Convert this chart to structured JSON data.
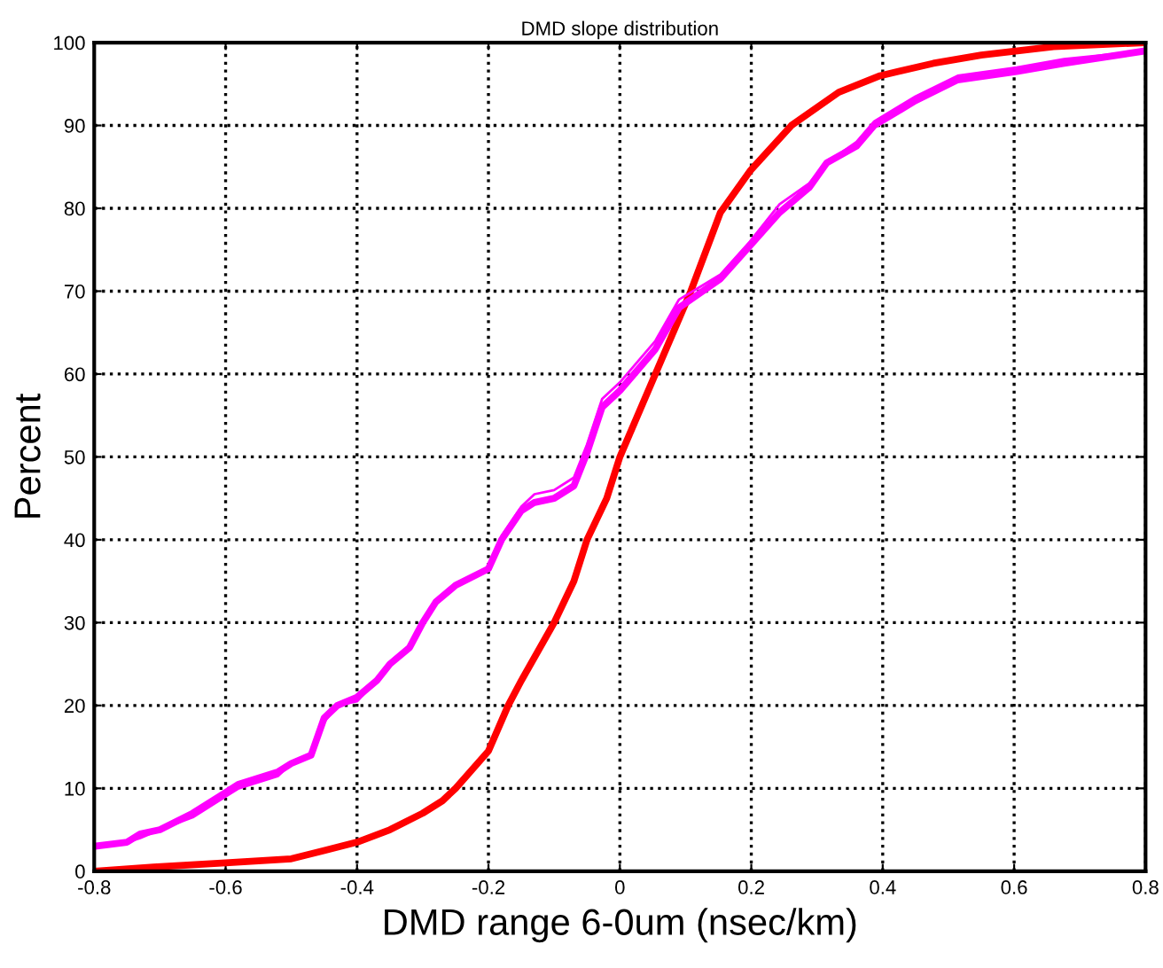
{
  "chart_data": {
    "type": "line",
    "title": "DMD slope distribution",
    "xlabel": "DMD range 6-0um (nsec/km)",
    "ylabel": "Percent",
    "xlim": [
      -0.8,
      0.8
    ],
    "ylim": [
      0,
      100
    ],
    "xticks": [
      -0.8,
      -0.6,
      -0.4,
      -0.2,
      0,
      0.2,
      0.4,
      0.6,
      0.8
    ],
    "yticks": [
      0,
      10,
      20,
      30,
      40,
      50,
      60,
      70,
      80,
      90,
      100
    ],
    "grid": true,
    "line_style": "solid",
    "marker": "none",
    "series": [
      {
        "color": "#ff0000",
        "x": [
          -0.8,
          -0.71,
          -0.6,
          -0.5,
          -0.45,
          -0.4,
          -0.35,
          -0.3,
          -0.27,
          -0.25,
          -0.2,
          -0.17,
          -0.15,
          -0.1,
          -0.07,
          -0.05,
          -0.02,
          0,
          0.054,
          0.108,
          0.153,
          0.198,
          0.261,
          0.333,
          0.396,
          0.477,
          0.55,
          0.66,
          0.8
        ],
        "values": [
          0,
          0.5,
          1,
          1.5,
          2.5,
          3.5,
          5,
          7,
          8.5,
          10,
          14.5,
          20,
          23,
          30,
          35,
          40,
          45,
          50,
          60,
          70,
          79.5,
          84.5,
          90,
          94,
          96,
          97.5,
          98.5,
          99.5,
          100
        ]
      },
      {
        "color": "#ff00ff",
        "x": [
          -0.8,
          -0.75,
          -0.73,
          -0.7,
          -0.65,
          -0.6,
          -0.58,
          -0.52,
          -0.5,
          -0.47,
          -0.45,
          -0.43,
          -0.4,
          -0.37,
          -0.35,
          -0.32,
          -0.3,
          -0.28,
          -0.25,
          -0.2,
          -0.18,
          -0.15,
          -0.13,
          -0.1,
          -0.07,
          -0.05,
          -0.027,
          0,
          0.054,
          0.09,
          0.153,
          0.198,
          0.243,
          0.288,
          0.315,
          0.36,
          0.387,
          0.45,
          0.514,
          0.604,
          0.676,
          0.8
        ],
        "values": [
          3,
          3.5,
          4.5,
          5,
          7,
          9.5,
          10.5,
          12,
          13,
          14,
          18.5,
          20,
          21,
          23,
          25,
          27,
          30,
          32.5,
          34.5,
          36.5,
          40,
          43.5,
          44.5,
          45,
          46.5,
          50.5,
          56,
          58,
          63,
          68,
          71.5,
          75.5,
          79.5,
          82.5,
          85.5,
          87.5,
          90,
          93,
          95.5,
          96.5,
          97.5,
          99
        ]
      },
      {
        "color": "#ff00ff",
        "x": [
          -0.8,
          -0.75,
          -0.73,
          -0.7,
          -0.65,
          -0.6,
          -0.58,
          -0.52,
          -0.5,
          -0.47,
          -0.45,
          -0.43,
          -0.4,
          -0.37,
          -0.35,
          -0.32,
          -0.3,
          -0.28,
          -0.25,
          -0.2,
          -0.18,
          -0.15,
          -0.13,
          -0.1,
          -0.07,
          -0.05,
          -0.027,
          0,
          0.054,
          0.09,
          0.153,
          0.198,
          0.243,
          0.288,
          0.315,
          0.36,
          0.387,
          0.45,
          0.514,
          0.604,
          0.676,
          0.8
        ],
        "values": [
          3,
          3.5,
          4,
          5,
          6.5,
          9,
          10,
          11.5,
          13,
          14,
          18,
          20,
          20.5,
          23,
          25,
          27,
          30,
          32.5,
          34.5,
          36.5,
          40.5,
          44,
          45.5,
          46,
          47.5,
          51.5,
          57,
          59,
          64,
          69,
          72,
          76,
          80.5,
          83,
          85.5,
          88,
          90.5,
          93.5,
          96,
          97,
          98,
          99
        ]
      }
    ]
  }
}
